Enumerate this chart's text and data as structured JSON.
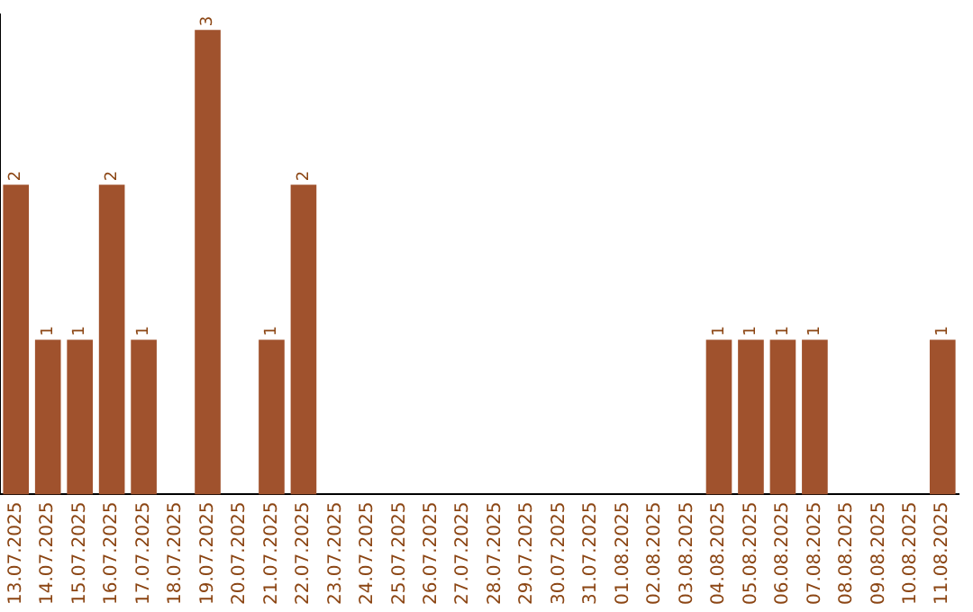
{
  "chart_data": {
    "type": "bar",
    "categories": [
      "13.07.2025",
      "14.07.2025",
      "15.07.2025",
      "16.07.2025",
      "17.07.2025",
      "18.07.2025",
      "19.07.2025",
      "20.07.2025",
      "21.07.2025",
      "22.07.2025",
      "23.07.2025",
      "24.07.2025",
      "25.07.2025",
      "26.07.2025",
      "27.07.2025",
      "28.07.2025",
      "29.07.2025",
      "30.07.2025",
      "31.07.2025",
      "01.08.2025",
      "02.08.2025",
      "03.08.2025",
      "04.08.2025",
      "05.08.2025",
      "06.08.2025",
      "07.08.2025",
      "08.08.2025",
      "09.08.2025",
      "10.08.2025",
      "11.08.2025"
    ],
    "values": [
      2,
      1,
      1,
      2,
      1,
      0,
      3,
      0,
      1,
      2,
      0,
      0,
      0,
      0,
      0,
      0,
      0,
      0,
      0,
      0,
      0,
      0,
      1,
      1,
      1,
      1,
      0,
      0,
      0,
      1
    ],
    "value_labels": [
      "2",
      "1",
      "1",
      "2",
      "1",
      null,
      "3",
      null,
      "1",
      "2",
      null,
      null,
      null,
      null,
      null,
      null,
      null,
      null,
      null,
      null,
      null,
      null,
      "1",
      "1",
      "1",
      "1",
      null,
      null,
      null,
      "1"
    ],
    "color": "#a0522d",
    "ylim": [
      0,
      3.1
    ],
    "tick_labels": "x",
    "grid": false,
    "legend": false
  }
}
